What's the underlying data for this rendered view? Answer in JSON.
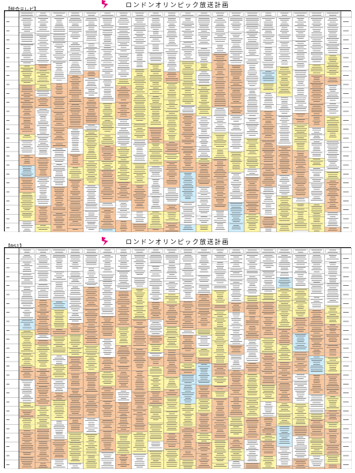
{
  "sheets": [
    {
      "channel": "【総合テレビ】",
      "title": "ロンドンオリンピック放送計画",
      "colors": {
        "orange": "#f8c8a0",
        "yellow": "#fff6a8",
        "blue": "#cfeefc",
        "white": "#ffffff",
        "grid": "#8a8a8a"
      }
    },
    {
      "channel": "【BS1】",
      "title": "ロンドンオリンピック放送計画",
      "colors": {
        "orange": "#f8c8a0",
        "yellow": "#fff6a8",
        "blue": "#cfeefc",
        "white": "#ffffff",
        "grid": "#8a8a8a"
      }
    }
  ],
  "logo_icon": "london-2012-logo-icon"
}
